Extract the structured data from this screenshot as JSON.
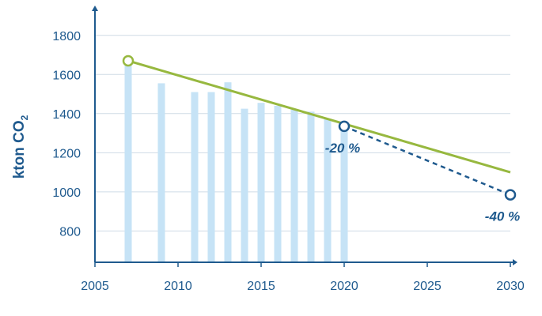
{
  "chart_data": {
    "type": "bar",
    "ylabel": "kton CO",
    "ylabel_sub": "2",
    "xlim": [
      2005,
      2030
    ],
    "ylim": [
      640,
      1900
    ],
    "grid": true,
    "y_ticks": [
      800,
      1000,
      1200,
      1400,
      1600,
      1800
    ],
    "x_ticks": [
      2005,
      2010,
      2015,
      2020,
      2025,
      2030
    ],
    "bars": {
      "years": [
        2007,
        2009,
        2011,
        2012,
        2013,
        2014,
        2015,
        2016,
        2017,
        2018,
        2019,
        2020
      ],
      "values": [
        1665,
        1555,
        1510,
        1510,
        1560,
        1425,
        1455,
        1440,
        1420,
        1410,
        1375,
        1315
      ]
    },
    "trend_line": {
      "x": [
        2007,
        2030
      ],
      "y": [
        1670,
        1100
      ]
    },
    "target_line": {
      "x": [
        2020,
        2030
      ],
      "y": [
        1335,
        985
      ]
    },
    "markers": [
      {
        "x": 2007,
        "y": 1670,
        "series": "trend"
      },
      {
        "x": 2020,
        "y": 1335,
        "series": "target"
      },
      {
        "x": 2030,
        "y": 985,
        "series": "target"
      }
    ],
    "annotations": [
      {
        "text": "-20 %",
        "x": 2020,
        "y": 1335
      },
      {
        "text": "-40 %",
        "x": 2030,
        "y": 985
      }
    ],
    "colors": {
      "bar": "#c6e3f6",
      "trend": "#97b83f",
      "target": "#1f5a8e",
      "axis": "#1f5a8e",
      "grid": "#cfdce6",
      "text": "#1f5a8e"
    }
  }
}
